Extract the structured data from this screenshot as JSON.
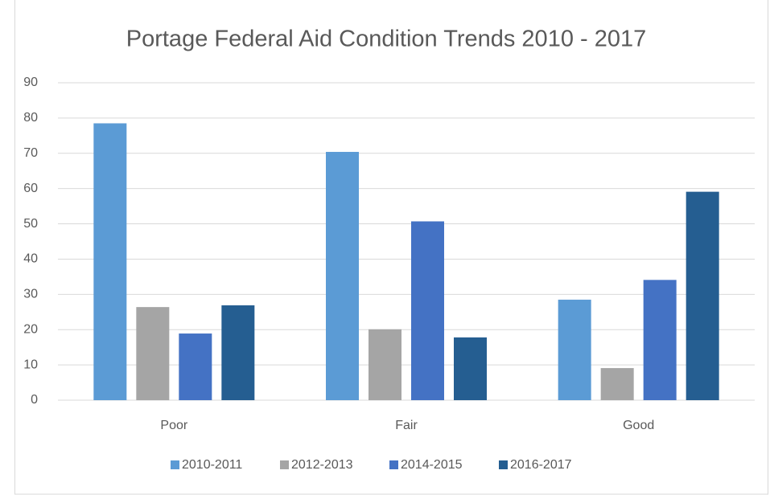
{
  "chart_data": {
    "type": "bar",
    "title": "Portage Federal Aid Condition Trends 2010 - 2017",
    "categories": [
      "Poor",
      "Fair",
      "Good"
    ],
    "series": [
      {
        "name": "2010-2011",
        "color": "#5b9bd5",
        "values": [
          78.5,
          70.4,
          28.5
        ]
      },
      {
        "name": "2012-2013",
        "color": "#a5a5a5",
        "values": [
          26.4,
          20.1,
          9.1
        ]
      },
      {
        "name": "2014-2015",
        "color": "#4472c4",
        "values": [
          18.9,
          50.7,
          34.1
        ]
      },
      {
        "name": "2016-2017",
        "color": "#255e91",
        "values": [
          26.9,
          17.8,
          59.1
        ]
      }
    ],
    "ylim": [
      0,
      90
    ],
    "yticks": [
      0,
      10,
      20,
      30,
      40,
      50,
      60,
      70,
      80,
      90
    ],
    "grid": true,
    "legend": "bottom"
  }
}
